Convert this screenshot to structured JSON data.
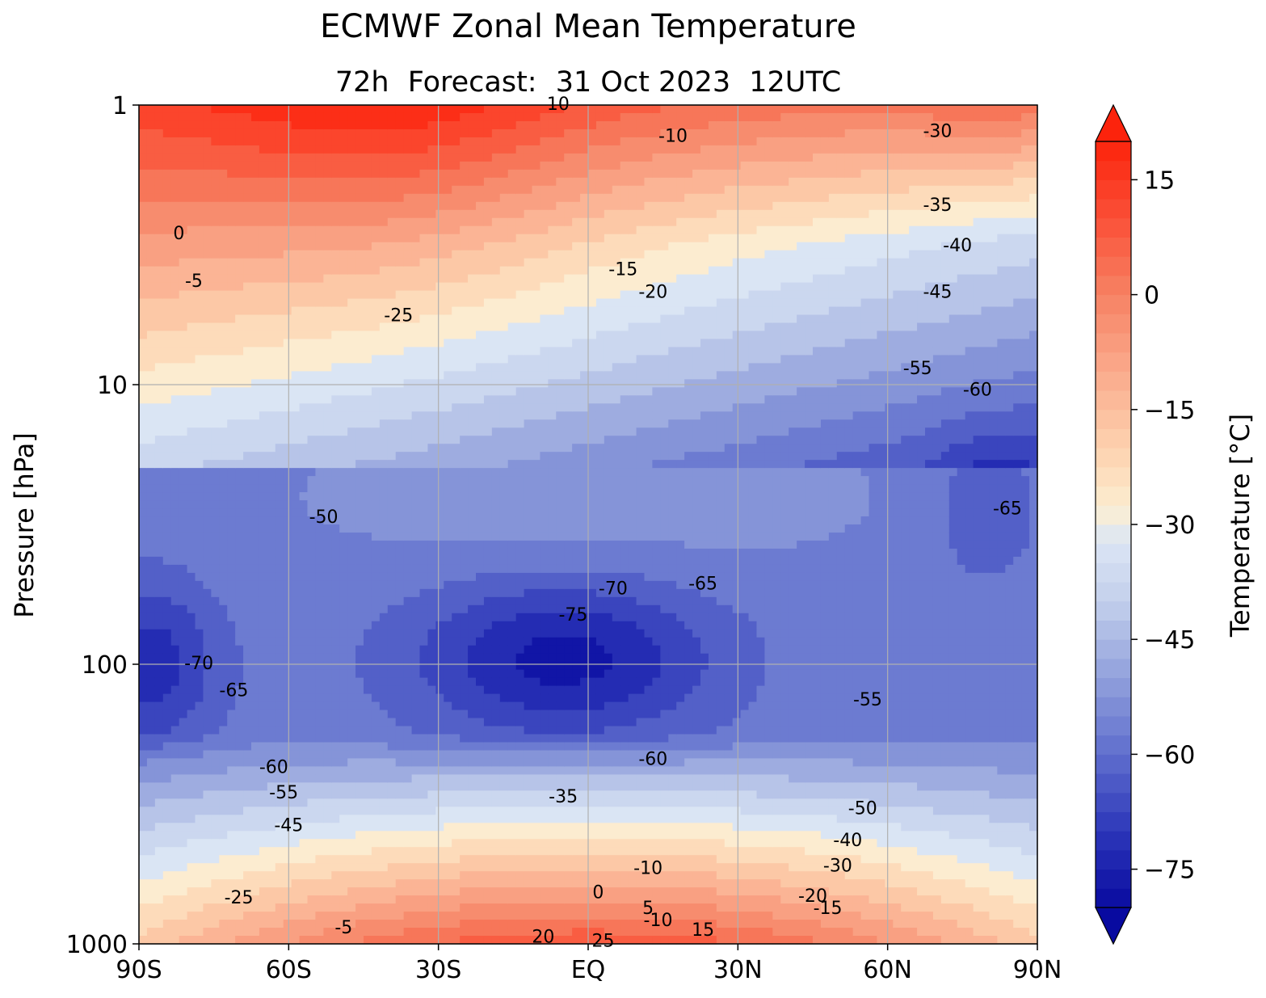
{
  "chart_data": {
    "type": "heatmap",
    "title": "ECMWF Zonal Mean Temperature",
    "subtitle": [
      "72h",
      "Forecast:",
      "31 Oct 2023",
      "12UTC"
    ],
    "xlabel": "",
    "ylabel": "Pressure [hPa]",
    "colorbar_label": "Temperature [°C]",
    "x_ticks": [
      "90S",
      "60S",
      "30S",
      "EQ",
      "30N",
      "60N",
      "90N"
    ],
    "x_tick_values": [
      -90,
      -60,
      -30,
      0,
      30,
      60,
      90
    ],
    "y_ticks": [
      "1",
      "10",
      "100",
      "1000"
    ],
    "y_tick_values": [
      1,
      10,
      100,
      1000
    ],
    "y_scale": "log",
    "y_inverted": true,
    "xlim": [
      -90,
      90
    ],
    "ylim": [
      1000,
      1
    ],
    "grid": true,
    "colorbar_ticks": [
      "15",
      "0",
      "−15",
      "−30",
      "−45",
      "−60",
      "−75"
    ],
    "colorbar_tick_values": [
      15,
      0,
      -15,
      -30,
      -45,
      -60,
      -75
    ],
    "colorbar_range": [
      -80,
      20
    ],
    "colorbar_extend": "both",
    "contour_interval": 5,
    "negative_contours_dashed": true,
    "contour_labels": [
      {
        "text": "10",
        "lat": -6,
        "p": 1
      },
      {
        "text": "-10",
        "lat": 17,
        "p": 1.3
      },
      {
        "text": "-30",
        "lat": 70,
        "p": 1.25
      },
      {
        "text": "-35",
        "lat": 70,
        "p": 2.3
      },
      {
        "text": "0",
        "lat": -82,
        "p": 2.9
      },
      {
        "text": "-40",
        "lat": 74,
        "p": 3.2
      },
      {
        "text": "-5",
        "lat": -79,
        "p": 4.3
      },
      {
        "text": "-15",
        "lat": 7,
        "p": 3.9
      },
      {
        "text": "-20",
        "lat": 13,
        "p": 4.7
      },
      {
        "text": "-45",
        "lat": 70,
        "p": 4.7
      },
      {
        "text": "-25",
        "lat": -38,
        "p": 5.7
      },
      {
        "text": "-55",
        "lat": 66,
        "p": 8.8
      },
      {
        "text": "-60",
        "lat": 78,
        "p": 10.5
      },
      {
        "text": "-50",
        "lat": -53,
        "p": 30
      },
      {
        "text": "-65",
        "lat": 84,
        "p": 28
      },
      {
        "text": "-70",
        "lat": 5,
        "p": 54
      },
      {
        "text": "-65",
        "lat": 23,
        "p": 52
      },
      {
        "text": "-75",
        "lat": -3,
        "p": 67
      },
      {
        "text": "-70",
        "lat": -78,
        "p": 100
      },
      {
        "text": "-65",
        "lat": -71,
        "p": 125
      },
      {
        "text": "-55",
        "lat": 56,
        "p": 135
      },
      {
        "text": "-60",
        "lat": 13,
        "p": 220
      },
      {
        "text": "-60",
        "lat": -63,
        "p": 235
      },
      {
        "text": "-55",
        "lat": -61,
        "p": 290
      },
      {
        "text": "-45",
        "lat": -60,
        "p": 380
      },
      {
        "text": "-35",
        "lat": -5,
        "p": 300
      },
      {
        "text": "-50",
        "lat": 55,
        "p": 330
      },
      {
        "text": "-40",
        "lat": 52,
        "p": 430
      },
      {
        "text": "-30",
        "lat": 50,
        "p": 530
      },
      {
        "text": "-10",
        "lat": 12,
        "p": 540
      },
      {
        "text": "-20",
        "lat": 45,
        "p": 680
      },
      {
        "text": "-15",
        "lat": 48,
        "p": 750
      },
      {
        "text": "-25",
        "lat": -70,
        "p": 690
      },
      {
        "text": "0",
        "lat": 2,
        "p": 660
      },
      {
        "text": "5",
        "lat": 12,
        "p": 750
      },
      {
        "text": "-10",
        "lat": 14,
        "p": 830
      },
      {
        "text": "-5",
        "lat": -49,
        "p": 880
      },
      {
        "text": "15",
        "lat": 23,
        "p": 900
      },
      {
        "text": "20",
        "lat": -9,
        "p": 950
      },
      {
        "text": "25",
        "lat": 3,
        "p": 985
      }
    ]
  }
}
